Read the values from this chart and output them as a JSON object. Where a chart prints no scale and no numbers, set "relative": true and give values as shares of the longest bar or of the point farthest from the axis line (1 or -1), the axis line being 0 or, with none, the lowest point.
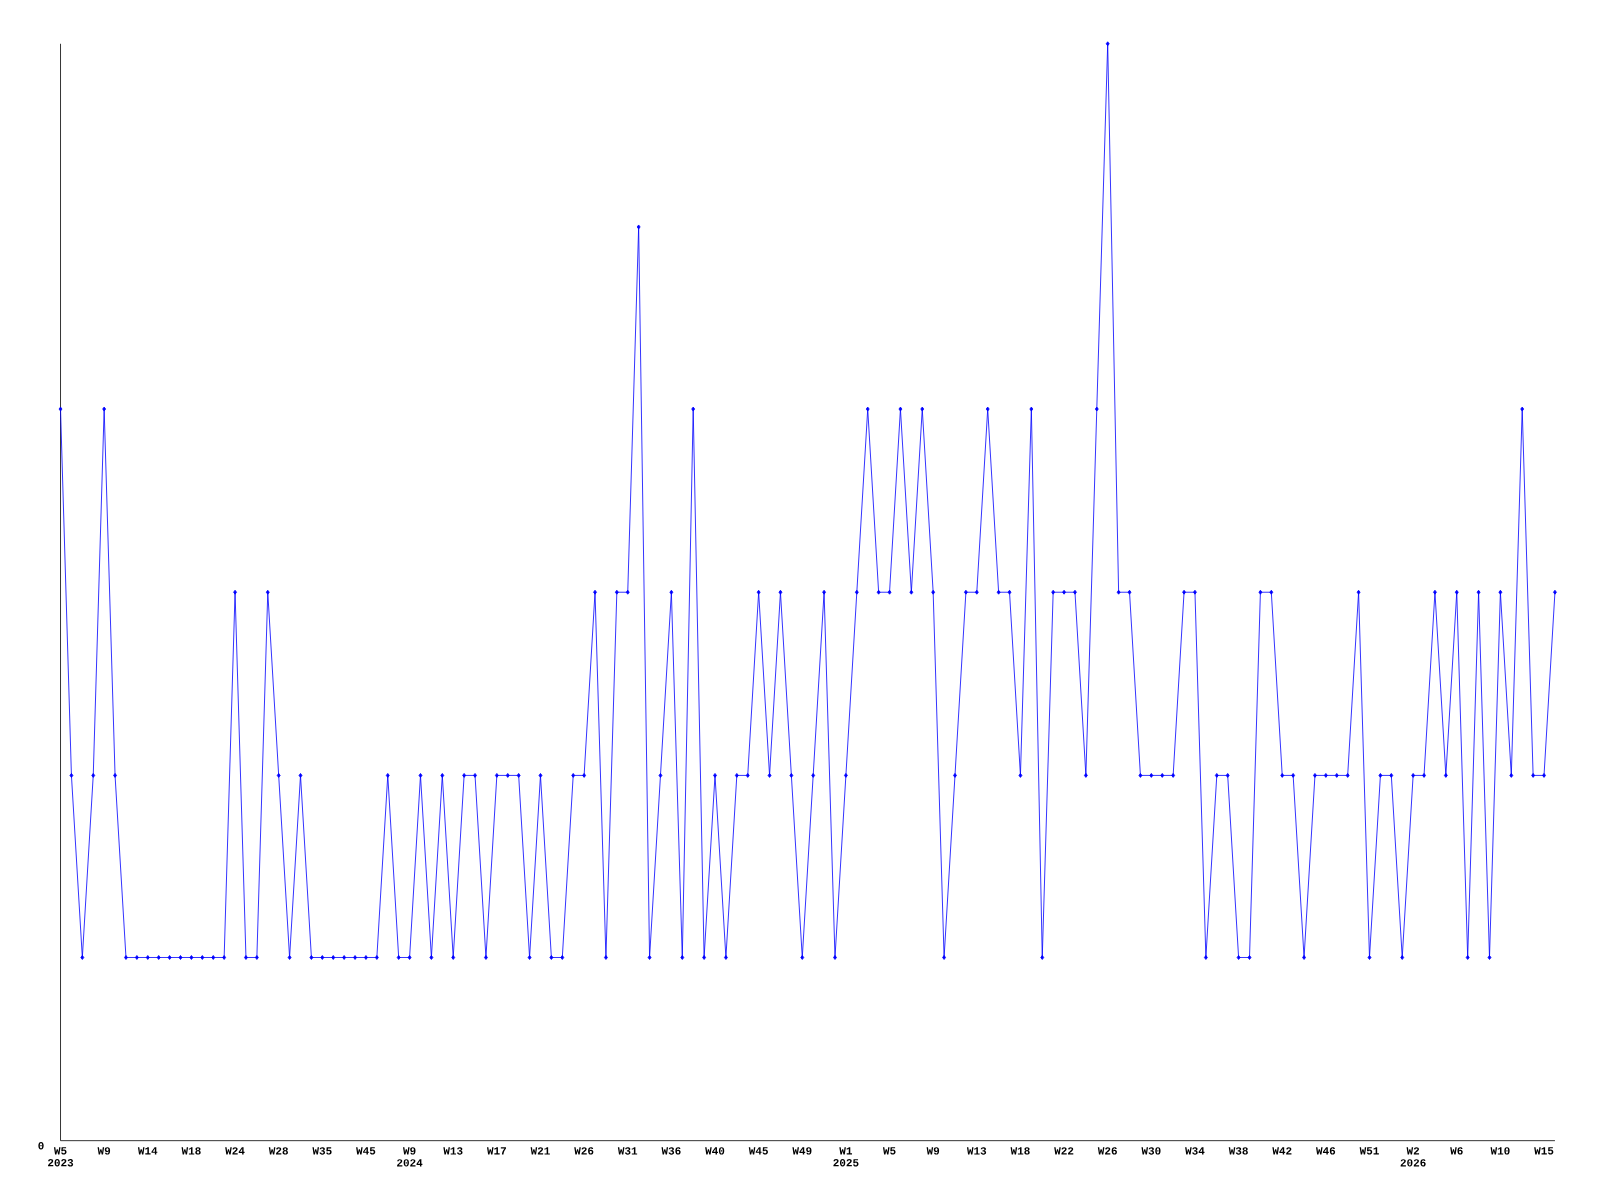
{
  "chart_data": {
    "type": "line",
    "relative": true,
    "color": "#0000ff",
    "marker": "diamond",
    "line_style": "solid",
    "grid": false,
    "annotations": [
      "0"
    ],
    "categories": [
      "W5 2023",
      null,
      null,
      null,
      "W9",
      null,
      null,
      null,
      "W14",
      null,
      null,
      null,
      "W18",
      null,
      null,
      null,
      "W24",
      null,
      null,
      null,
      "W28",
      null,
      null,
      null,
      "W35",
      null,
      null,
      null,
      "W45",
      null,
      null,
      null,
      "W9 2024",
      null,
      null,
      null,
      "W13",
      null,
      null,
      null,
      "W17",
      null,
      null,
      null,
      "W21",
      null,
      null,
      null,
      "W26",
      null,
      null,
      null,
      "W31",
      null,
      null,
      null,
      "W36",
      null,
      null,
      null,
      "W40",
      null,
      null,
      null,
      "W45",
      null,
      null,
      null,
      "W49",
      null,
      null,
      null,
      "W1 2025",
      null,
      null,
      null,
      "W5",
      null,
      null,
      null,
      "W9",
      null,
      null,
      null,
      "W13",
      null,
      null,
      null,
      "W18",
      null,
      null,
      null,
      "W22",
      null,
      null,
      null,
      "W26",
      null,
      null,
      null,
      "W30",
      null,
      null,
      null,
      "W34",
      null,
      null,
      null,
      "W38",
      null,
      null,
      null,
      "W42",
      null,
      null,
      null,
      "W46",
      null,
      null,
      null,
      "W51",
      null,
      null,
      null,
      "W2 2026",
      null,
      null,
      null,
      "W6",
      null,
      null,
      null,
      "W10",
      null,
      null,
      null,
      "W15",
      null
    ],
    "values": [
      0.667,
      0.333,
      0.167,
      0.333,
      0.667,
      0.333,
      0.167,
      0.167,
      0.167,
      0.167,
      0.167,
      0.167,
      0.167,
      0.167,
      0.167,
      0.167,
      0.5,
      0.167,
      0.167,
      0.5,
      0.333,
      0.167,
      0.333,
      0.167,
      0.167,
      0.167,
      0.167,
      0.167,
      0.167,
      0.167,
      0.333,
      0.167,
      0.167,
      0.333,
      0.167,
      0.333,
      0.167,
      0.333,
      0.333,
      0.167,
      0.333,
      0.333,
      0.333,
      0.167,
      0.333,
      0.167,
      0.167,
      0.333,
      0.333,
      0.5,
      0.167,
      0.5,
      0.5,
      0.833,
      0.167,
      0.333,
      0.5,
      0.167,
      0.667,
      0.167,
      0.333,
      0.167,
      0.333,
      0.333,
      0.5,
      0.333,
      0.5,
      0.333,
      0.167,
      0.333,
      0.5,
      0.167,
      0.333,
      0.5,
      0.667,
      0.5,
      0.5,
      0.667,
      0.5,
      0.667,
      0.5,
      0.167,
      0.333,
      0.5,
      0.5,
      0.667,
      0.5,
      0.5,
      0.333,
      0.667,
      0.167,
      0.5,
      0.5,
      0.5,
      0.333,
      0.667,
      1,
      0.5,
      0.5,
      0.333,
      0.333,
      0.333,
      0.333,
      0.5,
      0.5,
      0.167,
      0.333,
      0.333,
      0.167,
      0.167,
      0.5,
      0.5,
      0.333,
      0.333,
      0.167,
      0.333,
      0.333,
      0.333,
      0.333,
      0.5,
      0.167,
      0.333,
      0.333,
      0.167,
      0.333,
      0.333,
      0.5,
      0.333,
      0.5,
      0.167,
      0.5,
      0.167,
      0.5,
      0.333,
      0.667,
      0.333,
      0.333,
      0.5
    ]
  }
}
